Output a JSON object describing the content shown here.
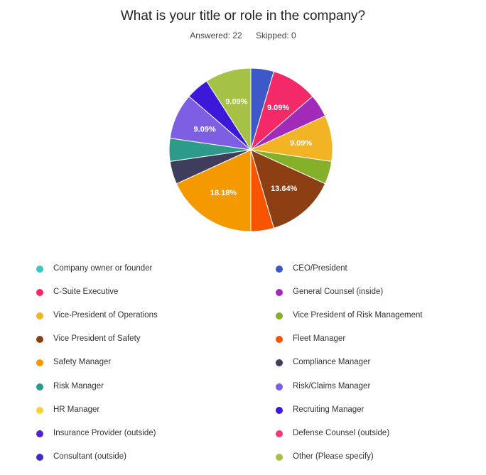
{
  "colors": {
    "background": "#ffffff",
    "slice_border": "#ffffff",
    "slice_label_text": "#ffffff"
  },
  "chart_data": {
    "type": "pie",
    "title": "What is your title or role in the company?",
    "answered_label": "Answered: 22",
    "skipped_label": "Skipped: 0",
    "total_responses": 22,
    "start_angle_deg": 0,
    "direction": "clockwise",
    "legend_position": "bottom",
    "slices": [
      {
        "label": "CEO/President",
        "value": 1,
        "percent_label": "",
        "color": "#3d58c8"
      },
      {
        "label": "C-Suite Executive",
        "value": 2,
        "percent_label": "9.09%",
        "color": "#f32968"
      },
      {
        "label": "General Counsel (inside)",
        "value": 1,
        "percent_label": "",
        "color": "#a22ab8"
      },
      {
        "label": "Vice-President of Operations",
        "value": 2,
        "percent_label": "9.09%",
        "color": "#f2b325"
      },
      {
        "label": "Vice President of Risk Management",
        "value": 1,
        "percent_label": "",
        "color": "#84b02a"
      },
      {
        "label": "Vice President of Safety",
        "value": 3,
        "percent_label": "13.64%",
        "color": "#8b3f13"
      },
      {
        "label": "Fleet Manager",
        "value": 1,
        "percent_label": "",
        "color": "#f75400"
      },
      {
        "label": "Safety Manager",
        "value": 4,
        "percent_label": "18.18%",
        "color": "#f59901"
      },
      {
        "label": "Compliance Manager",
        "value": 1,
        "percent_label": "",
        "color": "#3e3e5c"
      },
      {
        "label": "Risk Manager",
        "value": 1,
        "percent_label": "",
        "color": "#2c9b8b"
      },
      {
        "label": "Risk/Claims Manager",
        "value": 2,
        "percent_label": "9.09%",
        "color": "#7e5fe4"
      },
      {
        "label": "Recruiting Manager",
        "value": 1,
        "percent_label": "",
        "color": "#3c18d9"
      },
      {
        "label": "Other (Please specify)",
        "value": 2,
        "percent_label": "9.09%",
        "color": "#a5c247"
      },
      {
        "label": "Company owner or founder",
        "value": 0,
        "percent_label": "",
        "color": "#3fc6c9"
      },
      {
        "label": "HR Manager",
        "value": 0,
        "percent_label": "",
        "color": "#f7d137"
      },
      {
        "label": "Insurance Provider (outside)",
        "value": 0,
        "percent_label": "",
        "color": "#5420d4"
      },
      {
        "label": "Defense Counsel (outside)",
        "value": 0,
        "percent_label": "",
        "color": "#f23a7a"
      },
      {
        "label": "Consultant (outside)",
        "value": 0,
        "percent_label": "",
        "color": "#4128cf"
      }
    ],
    "legend": {
      "left": [
        {
          "label": "Company owner or founder",
          "color": "#3fc6c9"
        },
        {
          "label": "C-Suite Executive",
          "color": "#f32968"
        },
        {
          "label": "Vice-President of Operations",
          "color": "#f2b325"
        },
        {
          "label": "Vice President of Safety",
          "color": "#8b3f13"
        },
        {
          "label": "Safety Manager",
          "color": "#f59901"
        },
        {
          "label": "Risk Manager",
          "color": "#2c9b8b"
        },
        {
          "label": "HR Manager",
          "color": "#f7d137"
        },
        {
          "label": "Insurance Provider (outside)",
          "color": "#5420d4"
        },
        {
          "label": "Consultant (outside)",
          "color": "#4128cf"
        }
      ],
      "right": [
        {
          "label": "CEO/President",
          "color": "#3d58c8"
        },
        {
          "label": "General Counsel (inside)",
          "color": "#a22ab8"
        },
        {
          "label": "Vice President of Risk Management",
          "color": "#84b02a"
        },
        {
          "label": "Fleet Manager",
          "color": "#f75400"
        },
        {
          "label": "Compliance Manager",
          "color": "#3e3e5c"
        },
        {
          "label": "Risk/Claims Manager",
          "color": "#7e5fe4"
        },
        {
          "label": "Recruiting Manager",
          "color": "#3c18d9"
        },
        {
          "label": "Defense Counsel (outside)",
          "color": "#f23a7a"
        },
        {
          "label": "Other (Please specify)",
          "color": "#a5c247"
        }
      ]
    }
  }
}
